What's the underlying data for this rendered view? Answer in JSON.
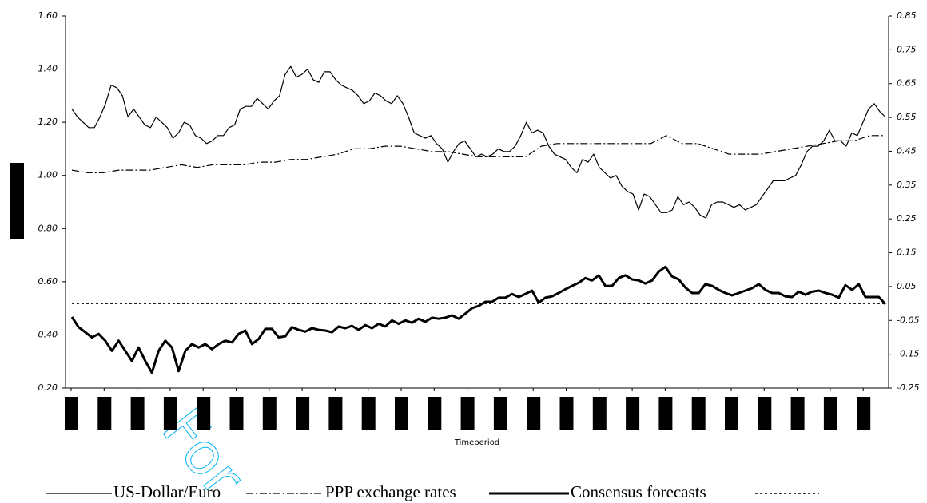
{
  "chart_data": {
    "type": "line",
    "x_label": "Timeperiod",
    "watermark": "For",
    "ylim": [
      0.2,
      1.6
    ],
    "yticks": [
      {
        "value": 0.2,
        "label": "0.20"
      },
      {
        "value": 0.4,
        "label": "0.40"
      },
      {
        "value": 0.6,
        "label": "0.60"
      },
      {
        "value": 0.8,
        "label": "0.80"
      },
      {
        "value": 1.0,
        "label": "1.00"
      },
      {
        "value": 1.2,
        "label": "1.20"
      },
      {
        "value": 1.4,
        "label": "1.40"
      },
      {
        "value": 1.6,
        "label": "1.60"
      }
    ],
    "y2lim": [
      -0.25,
      0.85
    ],
    "y2ticks": [
      -0.25,
      -0.15,
      -0.05,
      0.05,
      0.15,
      0.25,
      0.35,
      0.45,
      0.55,
      0.65,
      0.75,
      0.85
    ],
    "series": [
      {
        "name": "US-Dollar/Euro",
        "color": "#000000",
        "style": "solid",
        "values": [
          1.25,
          1.22,
          1.2,
          1.18,
          1.18,
          1.22,
          1.27,
          1.34,
          1.33,
          1.3,
          1.22,
          1.25,
          1.22,
          1.19,
          1.18,
          1.22,
          1.2,
          1.18,
          1.14,
          1.16,
          1.2,
          1.19,
          1.15,
          1.14,
          1.12,
          1.13,
          1.15,
          1.15,
          1.18,
          1.19,
          1.25,
          1.26,
          1.26,
          1.29,
          1.27,
          1.25,
          1.28,
          1.3,
          1.38,
          1.41,
          1.37,
          1.38,
          1.4,
          1.36,
          1.35,
          1.39,
          1.39,
          1.36,
          1.34,
          1.33,
          1.32,
          1.3,
          1.27,
          1.28,
          1.31,
          1.3,
          1.28,
          1.27,
          1.3,
          1.27,
          1.22,
          1.16,
          1.15,
          1.14,
          1.15,
          1.12,
          1.1,
          1.05,
          1.09,
          1.12,
          1.13,
          1.1,
          1.07,
          1.08,
          1.07,
          1.08,
          1.1,
          1.09,
          1.09,
          1.11,
          1.15,
          1.2,
          1.16,
          1.17,
          1.16,
          1.11,
          1.08,
          1.07,
          1.06,
          1.03,
          1.01,
          1.06,
          1.05,
          1.08,
          1.03,
          1.01,
          0.99,
          1.0,
          0.96,
          0.94,
          0.93,
          0.87,
          0.93,
          0.92,
          0.89,
          0.86,
          0.86,
          0.87,
          0.92,
          0.89,
          0.9,
          0.88,
          0.85,
          0.84,
          0.89,
          0.9,
          0.9,
          0.89,
          0.88,
          0.89,
          0.87,
          0.88,
          0.89,
          0.92,
          0.95,
          0.98,
          0.98,
          0.98,
          0.99,
          1.0,
          1.04,
          1.09,
          1.11,
          1.11,
          1.13,
          1.17,
          1.13,
          1.13,
          1.11,
          1.16,
          1.15,
          1.2,
          1.25,
          1.27,
          1.24,
          1.22
        ]
      },
      {
        "name": "PPP exchange rates",
        "color": "#000000",
        "style": "dash-dot",
        "values": [
          1.02,
          1.01,
          1.01,
          1.02,
          1.02,
          1.02,
          1.03,
          1.04,
          1.03,
          1.04,
          1.04,
          1.04,
          1.05,
          1.05,
          1.06,
          1.06,
          1.07,
          1.08,
          1.1,
          1.1,
          1.11,
          1.11,
          1.1,
          1.09,
          1.09,
          1.08,
          1.07,
          1.07,
          1.07,
          1.07,
          1.11,
          1.12,
          1.12,
          1.12,
          1.12,
          1.12,
          1.12,
          1.12,
          1.15,
          1.12,
          1.12,
          1.1,
          1.08,
          1.08,
          1.08,
          1.09,
          1.1,
          1.11,
          1.12,
          1.13,
          1.13,
          1.15,
          1.15
        ]
      },
      {
        "name": "Consensus forecasts",
        "color": "#000000",
        "style": "thick",
        "axis": "y2",
        "values": [
          -0.04,
          -0.07,
          -0.085,
          -0.1,
          -0.09,
          -0.11,
          -0.14,
          -0.11,
          -0.14,
          -0.17,
          -0.13,
          -0.17,
          -0.205,
          -0.14,
          -0.11,
          -0.13,
          -0.2,
          -0.14,
          -0.12,
          -0.13,
          -0.12,
          -0.135,
          -0.12,
          -0.11,
          -0.115,
          -0.09,
          -0.08,
          -0.12,
          -0.105,
          -0.075,
          -0.075,
          -0.1,
          -0.097,
          -0.07,
          -0.078,
          -0.083,
          -0.073,
          -0.078,
          -0.08,
          -0.085,
          -0.068,
          -0.073,
          -0.066,
          -0.078,
          -0.064,
          -0.073,
          -0.06,
          -0.068,
          -0.05,
          -0.06,
          -0.05,
          -0.057,
          -0.045,
          -0.054,
          -0.042,
          -0.045,
          -0.042,
          -0.035,
          -0.045,
          -0.03,
          -0.014,
          -0.007,
          0.005,
          0.005,
          0.017,
          0.017,
          0.028,
          0.019,
          0.028,
          0.038,
          0.002,
          0.017,
          0.021,
          0.031,
          0.042,
          0.052,
          0.061,
          0.075,
          0.068,
          0.083,
          0.052,
          0.052,
          0.075,
          0.083,
          0.071,
          0.068,
          0.059,
          0.068,
          0.094,
          0.108,
          0.08,
          0.071,
          0.047,
          0.031,
          0.031,
          0.057,
          0.052,
          0.04,
          0.031,
          0.024,
          0.031,
          0.038,
          0.045,
          0.057,
          0.04,
          0.031,
          0.031,
          0.021,
          0.019,
          0.035,
          0.026,
          0.035,
          0.038,
          0.031,
          0.026,
          0.017,
          0.054,
          0.04,
          0.057,
          0.019,
          0.019,
          0.019,
          -0.002
        ]
      },
      {
        "color": "#000000",
        "style": "dotted",
        "axis": "y2",
        "values": [
          0,
          0
        ]
      }
    ]
  }
}
